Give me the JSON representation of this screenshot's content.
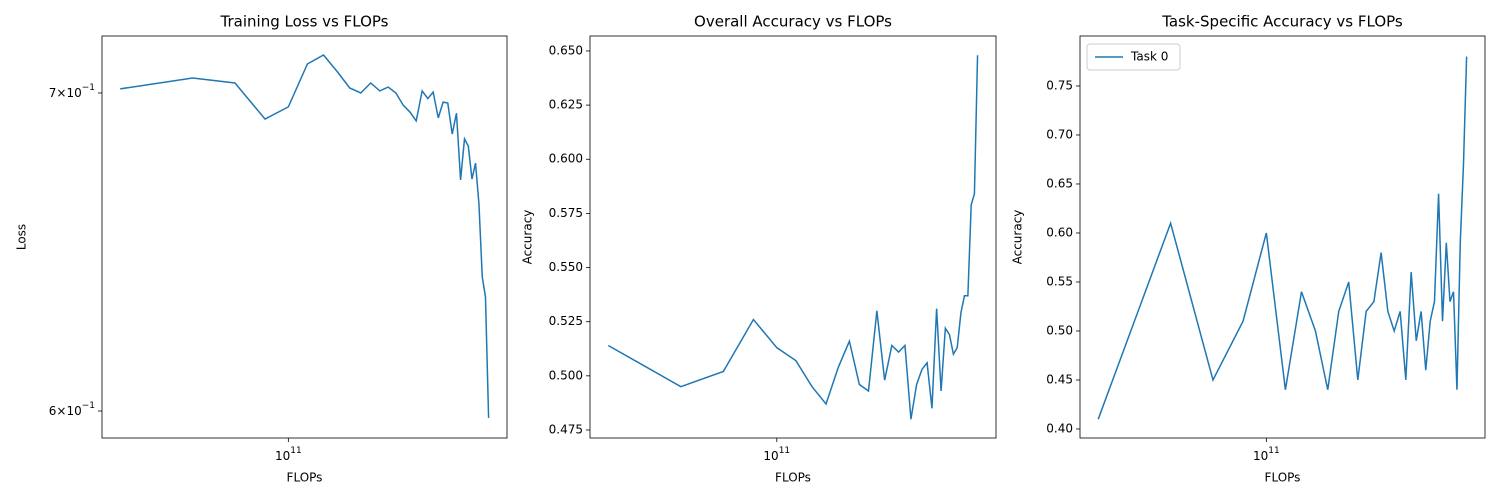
{
  "chart_data": [
    {
      "type": "line",
      "title": "Training Loss vs FLOPs",
      "x_label": "FLOPs",
      "y_label": "Loss",
      "xscale": "log",
      "yscale": "log",
      "x": [
        20000000000.0,
        40000000000.0,
        60000000000.0,
        80000000000.0,
        100000000000.0,
        120000000000.0,
        140000000000.0,
        160000000000.0,
        180000000000.0,
        200000000000.0,
        220000000000.0,
        240000000000.0,
        260000000000.0,
        280000000000.0,
        300000000000.0,
        320000000000.0,
        340000000000.0,
        360000000000.0,
        380000000000.0,
        400000000000.0,
        420000000000.0,
        440000000000.0,
        460000000000.0,
        480000000000.0,
        500000000000.0,
        520000000000.0,
        540000000000.0,
        560000000000.0,
        580000000000.0,
        600000000000.0,
        620000000000.0,
        640000000000.0,
        660000000000.0,
        680000000000.0
      ],
      "series": [
        {
          "color": "#1f77b4",
          "values": [
            0.7014,
            0.7051,
            0.7034,
            0.6912,
            0.6953,
            0.7099,
            0.713,
            0.7072,
            0.7017,
            0.7,
            0.7034,
            0.7007,
            0.702,
            0.7,
            0.6959,
            0.6936,
            0.6906,
            0.7007,
            0.6981,
            0.7003,
            0.6916,
            0.6969,
            0.6966,
            0.6862,
            0.6932,
            0.6711,
            0.6846,
            0.6822,
            0.6714,
            0.6766,
            0.6633,
            0.6403,
            0.6341,
            0.598
          ]
        }
      ],
      "xlim": [
        16800000000.0,
        811000000000.0
      ],
      "xticks": [
        {
          "value": 100000000000.0,
          "label": "10^11"
        }
      ],
      "ylim": [
        0.5922,
        0.7196
      ],
      "yticks": [
        {
          "value": 0.6,
          "label": "6×10^−1"
        },
        {
          "value": 0.7,
          "label": "7×10^−1"
        }
      ]
    },
    {
      "type": "line",
      "title": "Overall Accuracy vs FLOPs",
      "x_label": "FLOPs",
      "y_label": "Accuracy",
      "xscale": "log",
      "yscale": "linear",
      "x": [
        20000000000.0,
        40000000000.0,
        60000000000.0,
        80000000000.0,
        100000000000.0,
        120000000000.0,
        140000000000.0,
        160000000000.0,
        180000000000.0,
        200000000000.0,
        220000000000.0,
        240000000000.0,
        260000000000.0,
        280000000000.0,
        300000000000.0,
        320000000000.0,
        340000000000.0,
        360000000000.0,
        380000000000.0,
        400000000000.0,
        420000000000.0,
        440000000000.0,
        460000000000.0,
        480000000000.0,
        500000000000.0,
        520000000000.0,
        540000000000.0,
        560000000000.0,
        580000000000.0,
        600000000000.0,
        620000000000.0,
        640000000000.0,
        660000000000.0,
        680000000000.0
      ],
      "series": [
        {
          "color": "#1f77b4",
          "values": [
            0.514,
            0.495,
            0.502,
            0.526,
            0.513,
            0.507,
            0.495,
            0.487,
            0.504,
            0.516,
            0.496,
            0.493,
            0.53,
            0.498,
            0.514,
            0.511,
            0.514,
            0.48,
            0.496,
            0.503,
            0.506,
            0.485,
            0.531,
            0.493,
            0.522,
            0.519,
            0.51,
            0.513,
            0.529,
            0.537,
            0.537,
            0.579,
            0.584,
            0.648
          ]
        }
      ],
      "xlim": [
        16800000000.0,
        811000000000.0
      ],
      "xticks": [
        {
          "value": 100000000000.0,
          "label": "10^11"
        }
      ],
      "ylim": [
        0.4713,
        0.6569
      ],
      "yticks": [
        0.475,
        {
          "value": 0.5,
          "label": "0.500"
        },
        0.525,
        {
          "value": 0.55,
          "label": "0.550"
        },
        0.575,
        {
          "value": 0.6,
          "label": "0.600"
        },
        0.625,
        {
          "value": 0.65,
          "label": "0.650"
        }
      ]
    },
    {
      "type": "line",
      "title": "Task-Specific Accuracy vs FLOPs",
      "x_label": "FLOPs",
      "y_label": "Accuracy",
      "xscale": "log",
      "yscale": "linear",
      "legend": "upper left",
      "x": [
        20000000000.0,
        40000000000.0,
        60000000000.0,
        80000000000.0,
        100000000000.0,
        120000000000.0,
        140000000000.0,
        160000000000.0,
        180000000000.0,
        200000000000.0,
        220000000000.0,
        240000000000.0,
        260000000000.0,
        280000000000.0,
        300000000000.0,
        320000000000.0,
        340000000000.0,
        360000000000.0,
        380000000000.0,
        400000000000.0,
        420000000000.0,
        440000000000.0,
        460000000000.0,
        480000000000.0,
        500000000000.0,
        520000000000.0,
        540000000000.0,
        560000000000.0,
        580000000000.0,
        600000000000.0,
        620000000000.0,
        640000000000.0,
        660000000000.0,
        680000000000.0
      ],
      "series": [
        {
          "name": "Task 0",
          "color": "#1f77b4",
          "values": [
            0.41,
            0.61,
            0.45,
            0.51,
            0.6,
            0.44,
            0.54,
            0.5,
            0.44,
            0.52,
            0.55,
            0.45,
            0.52,
            0.53,
            0.58,
            0.52,
            0.5,
            0.52,
            0.45,
            0.56,
            0.49,
            0.52,
            0.46,
            0.51,
            0.53,
            0.64,
            0.51,
            0.59,
            0.53,
            0.54,
            0.44,
            0.59,
            0.67,
            0.78
          ]
        }
      ],
      "xlim": [
        16800000000.0,
        811000000000.0
      ],
      "xticks": [
        {
          "value": 100000000000.0,
          "label": "10^11"
        }
      ],
      "ylim": [
        0.3908,
        0.801
      ],
      "yticks": [
        {
          "value": 0.4,
          "label": "0.40"
        },
        0.45,
        {
          "value": 0.5,
          "label": "0.50"
        },
        0.55,
        {
          "value": 0.6,
          "label": "0.60"
        },
        0.65,
        {
          "value": 0.7,
          "label": "0.70"
        },
        0.75
      ]
    }
  ]
}
